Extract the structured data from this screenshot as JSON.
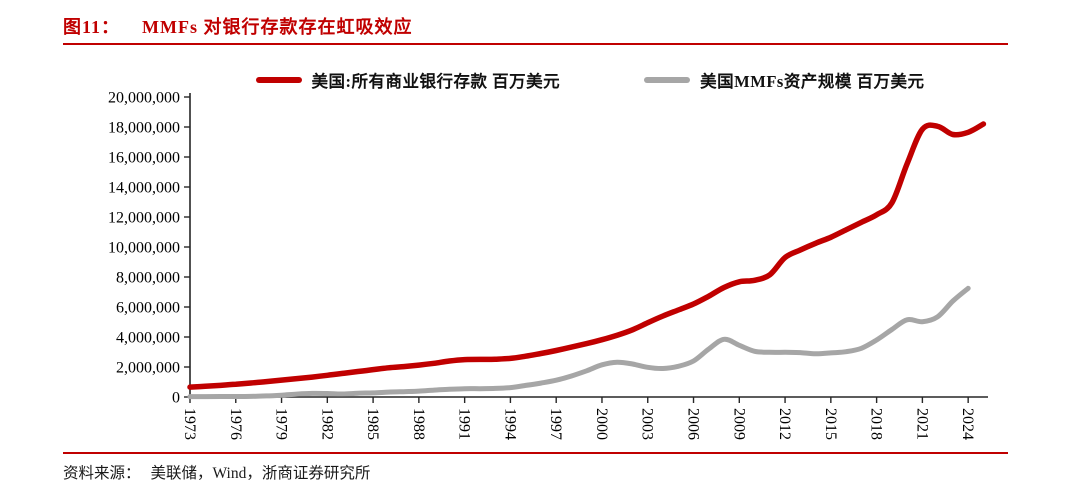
{
  "title": {
    "label": "图11：",
    "text": "MMFs 对银行存款存在虹吸效应"
  },
  "footer": {
    "source_label": "资料来源：",
    "source_text": "美联储，Wind，浙商证券研究所"
  },
  "colors": {
    "accent_red": "#c00000",
    "series_deposits": "#c00000",
    "series_mmf": "#a6a6a6",
    "axis": "#262626",
    "tick_text": "#000000"
  },
  "chart_data": {
    "type": "line",
    "title": "MMFs 对银行存款存在虹吸效应",
    "xlabel": "",
    "ylabel": "",
    "unit": "百万美元",
    "grid": false,
    "legend_position": "top-center",
    "ylim": [
      0,
      20000000
    ],
    "y_tick_step": 2000000,
    "y_tick_values": [
      0,
      2000000,
      4000000,
      6000000,
      8000000,
      10000000,
      12000000,
      14000000,
      16000000,
      18000000,
      20000000
    ],
    "y_tick_labels": [
      "0",
      "2,000,000",
      "4,000,000",
      "6,000,000",
      "8,000,000",
      "10,000,000",
      "12,000,000",
      "14,000,000",
      "16,000,000",
      "18,000,000",
      "20,000,000"
    ],
    "x_tick_labels": [
      "1973",
      "1976",
      "1979",
      "1982",
      "1985",
      "1988",
      "1991",
      "1994",
      "1997",
      "2000",
      "2003",
      "2006",
      "2009",
      "2012",
      "2015",
      "2018",
      "2021",
      "2024"
    ],
    "x_tick_years": [
      1973,
      1976,
      1979,
      1982,
      1985,
      1988,
      1991,
      1994,
      1997,
      2000,
      2003,
      2006,
      2009,
      2012,
      2015,
      2018,
      2021,
      2024
    ],
    "xlim": [
      1973,
      2025.3
    ],
    "series": [
      {
        "name": "美国:所有商业银行存款 百万美元",
        "color": "#c00000",
        "stroke_width": 5.5,
        "x": [
          1973,
          1974,
          1975,
          1976,
          1977,
          1978,
          1979,
          1980,
          1981,
          1982,
          1983,
          1984,
          1985,
          1986,
          1987,
          1988,
          1989,
          1990,
          1991,
          1992,
          1993,
          1994,
          1995,
          1996,
          1997,
          1998,
          1999,
          2000,
          2001,
          2002,
          2003,
          2004,
          2005,
          2006,
          2007,
          2008,
          2009,
          2010,
          2011,
          2012,
          2013,
          2014,
          2015,
          2016,
          2017,
          2018,
          2019,
          2020,
          2021,
          2022,
          2023,
          2024,
          2025
        ],
        "values": [
          660000,
          715000,
          775000,
          850000,
          935000,
          1030000,
          1130000,
          1230000,
          1330000,
          1450000,
          1575000,
          1700000,
          1825000,
          1950000,
          2030000,
          2130000,
          2250000,
          2400000,
          2490000,
          2510000,
          2520000,
          2570000,
          2720000,
          2900000,
          3100000,
          3330000,
          3560000,
          3820000,
          4120000,
          4480000,
          4950000,
          5400000,
          5800000,
          6200000,
          6720000,
          7300000,
          7680000,
          7780000,
          8150000,
          9300000,
          9800000,
          10250000,
          10650000,
          11150000,
          11650000,
          12150000,
          12950000,
          15550000,
          17850000,
          18050000,
          17500000,
          17650000,
          18200000
        ]
      },
      {
        "name": "美国MMFs资产规模 百万美元",
        "color": "#a6a6a6",
        "stroke_width": 5,
        "x": [
          1973,
          1974,
          1975,
          1976,
          1977,
          1978,
          1979,
          1980,
          1981,
          1982,
          1983,
          1984,
          1985,
          1986,
          1987,
          1988,
          1989,
          1990,
          1991,
          1992,
          1993,
          1994,
          1995,
          1996,
          1997,
          1998,
          1999,
          2000,
          2001,
          2002,
          2003,
          2004,
          2005,
          2006,
          2007,
          2008,
          2009,
          2010,
          2011,
          2012,
          2013,
          2014,
          2015,
          2016,
          2017,
          2018,
          2019,
          2020,
          2021,
          2022,
          2023,
          2024
        ],
        "values": [
          25000,
          30000,
          35000,
          35000,
          40000,
          70000,
          120000,
          190000,
          240000,
          235000,
          200000,
          255000,
          270000,
          330000,
          355000,
          390000,
          460000,
          520000,
          555000,
          555000,
          575000,
          630000,
          770000,
          930000,
          1120000,
          1400000,
          1750000,
          2150000,
          2320000,
          2200000,
          1980000,
          1900000,
          2050000,
          2400000,
          3200000,
          3850000,
          3450000,
          3050000,
          2980000,
          2980000,
          2960000,
          2880000,
          2940000,
          3020000,
          3250000,
          3800000,
          4500000,
          5150000,
          5020000,
          5350000,
          6400000,
          7250000
        ]
      }
    ]
  }
}
